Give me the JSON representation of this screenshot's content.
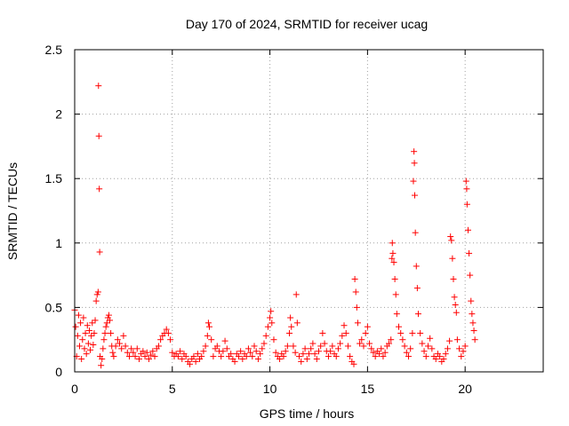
{
  "chart_data": {
    "type": "scatter",
    "title": "Day 170 of 2024, SRMTID for receiver ucag",
    "xlabel": "GPS time / hours",
    "ylabel": "SRMTID / TECUs",
    "xlim": [
      0,
      24
    ],
    "ylim": [
      0,
      2.5
    ],
    "grid": true,
    "x_ticks": [
      0,
      5,
      10,
      15,
      20
    ],
    "x_tick_labels": [
      "0",
      "5",
      "10",
      "15",
      "20"
    ],
    "y_ticks": [
      0,
      0.5,
      1,
      1.5,
      2,
      2.5
    ],
    "y_tick_labels": [
      "0",
      "0.5",
      "1",
      "1.5",
      "2",
      "2.5"
    ],
    "marker": "+",
    "marker_color": "#ff0000",
    "series": [
      {
        "name": "SRMTID",
        "points": [
          [
            0.0,
            0.48
          ],
          [
            0.05,
            0.35
          ],
          [
            0.1,
            0.12
          ],
          [
            0.15,
            0.28
          ],
          [
            0.2,
            0.44
          ],
          [
            0.25,
            0.2
          ],
          [
            0.3,
            0.38
          ],
          [
            0.35,
            0.1
          ],
          [
            0.4,
            0.25
          ],
          [
            0.45,
            0.42
          ],
          [
            0.5,
            0.18
          ],
          [
            0.55,
            0.3
          ],
          [
            0.6,
            0.14
          ],
          [
            0.65,
            0.36
          ],
          [
            0.7,
            0.22
          ],
          [
            0.75,
            0.32
          ],
          [
            0.8,
            0.17
          ],
          [
            0.85,
            0.28
          ],
          [
            0.9,
            0.38
          ],
          [
            0.95,
            0.21
          ],
          [
            1.0,
            0.3
          ],
          [
            1.05,
            0.4
          ],
          [
            1.1,
            0.55
          ],
          [
            1.15,
            0.6
          ],
          [
            1.2,
            0.62
          ],
          [
            1.22,
            2.22
          ],
          [
            1.24,
            1.83
          ],
          [
            1.26,
            1.42
          ],
          [
            1.28,
            0.93
          ],
          [
            1.3,
            0.12
          ],
          [
            1.35,
            0.05
          ],
          [
            1.4,
            0.1
          ],
          [
            1.45,
            0.18
          ],
          [
            1.5,
            0.25
          ],
          [
            1.55,
            0.3
          ],
          [
            1.6,
            0.35
          ],
          [
            1.65,
            0.38
          ],
          [
            1.7,
            0.42
          ],
          [
            1.75,
            0.44
          ],
          [
            1.8,
            0.4
          ],
          [
            1.85,
            0.3
          ],
          [
            1.9,
            0.2
          ],
          [
            1.95,
            0.15
          ],
          [
            2.0,
            0.12
          ],
          [
            2.1,
            0.2
          ],
          [
            2.2,
            0.25
          ],
          [
            2.3,
            0.22
          ],
          [
            2.4,
            0.18
          ],
          [
            2.5,
            0.28
          ],
          [
            2.6,
            0.2
          ],
          [
            2.7,
            0.15
          ],
          [
            2.8,
            0.12
          ],
          [
            2.9,
            0.18
          ],
          [
            3.0,
            0.15
          ],
          [
            3.1,
            0.12
          ],
          [
            3.2,
            0.18
          ],
          [
            3.3,
            0.1
          ],
          [
            3.4,
            0.14
          ],
          [
            3.5,
            0.16
          ],
          [
            3.6,
            0.12
          ],
          [
            3.7,
            0.15
          ],
          [
            3.8,
            0.1
          ],
          [
            3.9,
            0.13
          ],
          [
            4.0,
            0.16
          ],
          [
            4.1,
            0.12
          ],
          [
            4.2,
            0.18
          ],
          [
            4.3,
            0.2
          ],
          [
            4.4,
            0.25
          ],
          [
            4.5,
            0.28
          ],
          [
            4.6,
            0.3
          ],
          [
            4.7,
            0.33
          ],
          [
            4.8,
            0.3
          ],
          [
            4.9,
            0.25
          ],
          [
            5.0,
            0.15
          ],
          [
            5.1,
            0.12
          ],
          [
            5.2,
            0.14
          ],
          [
            5.3,
            0.12
          ],
          [
            5.4,
            0.16
          ],
          [
            5.5,
            0.1
          ],
          [
            5.6,
            0.14
          ],
          [
            5.7,
            0.12
          ],
          [
            5.8,
            0.08
          ],
          [
            5.9,
            0.06
          ],
          [
            6.0,
            0.1
          ],
          [
            6.1,
            0.12
          ],
          [
            6.2,
            0.08
          ],
          [
            6.3,
            0.14
          ],
          [
            6.4,
            0.1
          ],
          [
            6.5,
            0.12
          ],
          [
            6.6,
            0.16
          ],
          [
            6.7,
            0.2
          ],
          [
            6.8,
            0.28
          ],
          [
            6.85,
            0.38
          ],
          [
            6.9,
            0.35
          ],
          [
            7.0,
            0.25
          ],
          [
            7.1,
            0.12
          ],
          [
            7.2,
            0.18
          ],
          [
            7.3,
            0.2
          ],
          [
            7.4,
            0.16
          ],
          [
            7.5,
            0.12
          ],
          [
            7.6,
            0.16
          ],
          [
            7.7,
            0.24
          ],
          [
            7.8,
            0.18
          ],
          [
            7.9,
            0.12
          ],
          [
            8.0,
            0.14
          ],
          [
            8.1,
            0.1
          ],
          [
            8.2,
            0.08
          ],
          [
            8.3,
            0.14
          ],
          [
            8.4,
            0.12
          ],
          [
            8.5,
            0.16
          ],
          [
            8.6,
            0.1
          ],
          [
            8.7,
            0.14
          ],
          [
            8.8,
            0.12
          ],
          [
            8.9,
            0.18
          ],
          [
            9.0,
            0.15
          ],
          [
            9.1,
            0.12
          ],
          [
            9.2,
            0.2
          ],
          [
            9.3,
            0.16
          ],
          [
            9.4,
            0.1
          ],
          [
            9.5,
            0.14
          ],
          [
            9.6,
            0.18
          ],
          [
            9.7,
            0.22
          ],
          [
            9.8,
            0.28
          ],
          [
            9.9,
            0.35
          ],
          [
            10.0,
            0.42
          ],
          [
            10.05,
            0.47
          ],
          [
            10.1,
            0.38
          ],
          [
            10.2,
            0.25
          ],
          [
            10.3,
            0.15
          ],
          [
            10.4,
            0.12
          ],
          [
            10.5,
            0.1
          ],
          [
            10.6,
            0.14
          ],
          [
            10.7,
            0.12
          ],
          [
            10.8,
            0.16
          ],
          [
            10.9,
            0.2
          ],
          [
            11.0,
            0.3
          ],
          [
            11.05,
            0.42
          ],
          [
            11.1,
            0.35
          ],
          [
            11.2,
            0.2
          ],
          [
            11.3,
            0.15
          ],
          [
            11.35,
            0.6
          ],
          [
            11.4,
            0.38
          ],
          [
            11.5,
            0.12
          ],
          [
            11.6,
            0.08
          ],
          [
            11.7,
            0.14
          ],
          [
            11.8,
            0.18
          ],
          [
            11.9,
            0.1
          ],
          [
            12.0,
            0.14
          ],
          [
            12.1,
            0.18
          ],
          [
            12.2,
            0.22
          ],
          [
            12.3,
            0.14
          ],
          [
            12.4,
            0.1
          ],
          [
            12.5,
            0.16
          ],
          [
            12.6,
            0.2
          ],
          [
            12.7,
            0.3
          ],
          [
            12.8,
            0.22
          ],
          [
            12.9,
            0.16
          ],
          [
            13.0,
            0.12
          ],
          [
            13.1,
            0.16
          ],
          [
            13.2,
            0.2
          ],
          [
            13.3,
            0.14
          ],
          [
            13.4,
            0.12
          ],
          [
            13.5,
            0.18
          ],
          [
            13.6,
            0.22
          ],
          [
            13.7,
            0.28
          ],
          [
            13.8,
            0.36
          ],
          [
            13.9,
            0.3
          ],
          [
            14.0,
            0.2
          ],
          [
            14.1,
            0.12
          ],
          [
            14.2,
            0.08
          ],
          [
            14.3,
            0.06
          ],
          [
            14.35,
            0.72
          ],
          [
            14.4,
            0.62
          ],
          [
            14.45,
            0.5
          ],
          [
            14.5,
            0.38
          ],
          [
            14.6,
            0.22
          ],
          [
            14.7,
            0.25
          ],
          [
            14.8,
            0.2
          ],
          [
            14.9,
            0.3
          ],
          [
            15.0,
            0.35
          ],
          [
            15.1,
            0.22
          ],
          [
            15.2,
            0.18
          ],
          [
            15.3,
            0.15
          ],
          [
            15.4,
            0.12
          ],
          [
            15.5,
            0.16
          ],
          [
            15.6,
            0.14
          ],
          [
            15.7,
            0.18
          ],
          [
            15.8,
            0.12
          ],
          [
            15.9,
            0.15
          ],
          [
            16.0,
            0.2
          ],
          [
            16.1,
            0.22
          ],
          [
            16.2,
            0.25
          ],
          [
            16.25,
            0.88
          ],
          [
            16.27,
            1.0
          ],
          [
            16.3,
            0.92
          ],
          [
            16.35,
            0.85
          ],
          [
            16.4,
            0.72
          ],
          [
            16.45,
            0.6
          ],
          [
            16.5,
            0.45
          ],
          [
            16.6,
            0.35
          ],
          [
            16.7,
            0.3
          ],
          [
            16.8,
            0.25
          ],
          [
            16.9,
            0.2
          ],
          [
            17.0,
            0.15
          ],
          [
            17.1,
            0.12
          ],
          [
            17.2,
            0.18
          ],
          [
            17.3,
            0.3
          ],
          [
            17.35,
            1.48
          ],
          [
            17.38,
            1.71
          ],
          [
            17.4,
            1.62
          ],
          [
            17.42,
            1.37
          ],
          [
            17.45,
            1.08
          ],
          [
            17.5,
            0.82
          ],
          [
            17.55,
            0.65
          ],
          [
            17.6,
            0.45
          ],
          [
            17.7,
            0.3
          ],
          [
            17.8,
            0.22
          ],
          [
            17.9,
            0.16
          ],
          [
            18.0,
            0.12
          ],
          [
            18.1,
            0.2
          ],
          [
            18.2,
            0.26
          ],
          [
            18.3,
            0.18
          ],
          [
            18.4,
            0.12
          ],
          [
            18.5,
            0.1
          ],
          [
            18.6,
            0.14
          ],
          [
            18.7,
            0.12
          ],
          [
            18.8,
            0.08
          ],
          [
            18.9,
            0.1
          ],
          [
            19.0,
            0.14
          ],
          [
            19.1,
            0.18
          ],
          [
            19.2,
            0.24
          ],
          [
            19.25,
            1.05
          ],
          [
            19.3,
            1.02
          ],
          [
            19.35,
            0.88
          ],
          [
            19.4,
            0.72
          ],
          [
            19.45,
            0.58
          ],
          [
            19.5,
            0.52
          ],
          [
            19.55,
            0.46
          ],
          [
            19.6,
            0.25
          ],
          [
            19.7,
            0.18
          ],
          [
            19.8,
            0.12
          ],
          [
            19.9,
            0.16
          ],
          [
            20.0,
            0.2
          ],
          [
            20.05,
            1.48
          ],
          [
            20.08,
            1.42
          ],
          [
            20.1,
            1.3
          ],
          [
            20.15,
            1.1
          ],
          [
            20.2,
            0.92
          ],
          [
            20.25,
            0.75
          ],
          [
            20.3,
            0.55
          ],
          [
            20.35,
            0.45
          ],
          [
            20.4,
            0.38
          ],
          [
            20.45,
            0.32
          ],
          [
            20.5,
            0.25
          ]
        ]
      }
    ]
  }
}
